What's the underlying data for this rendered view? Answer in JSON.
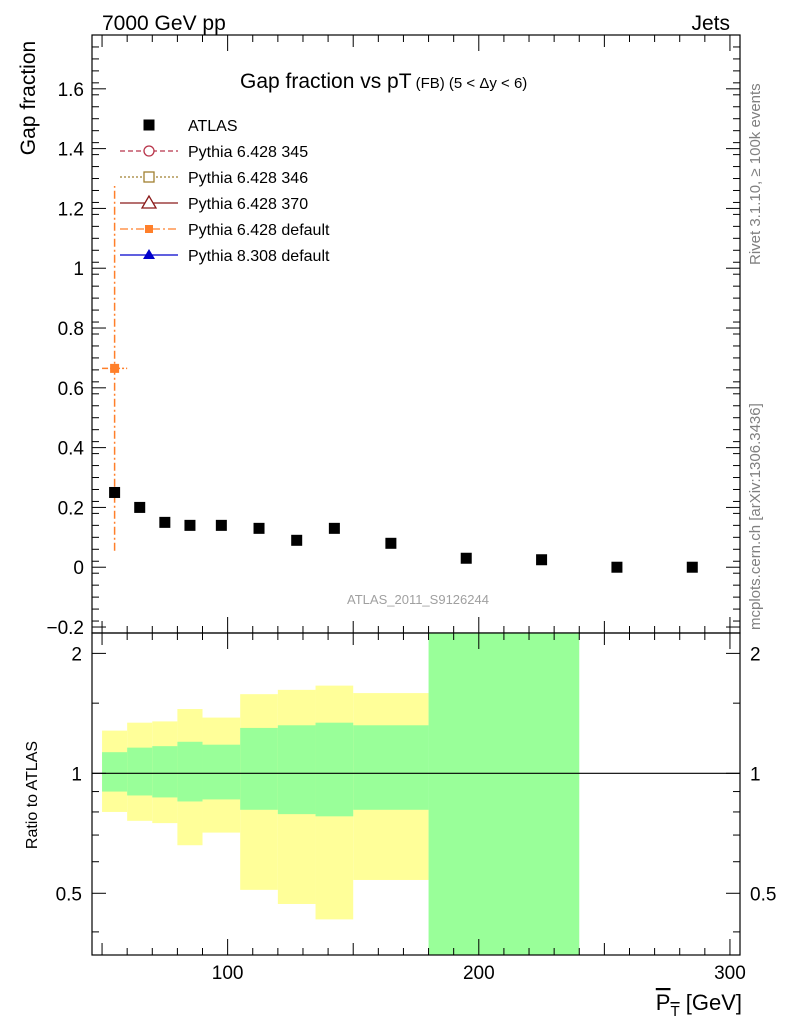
{
  "header": {
    "left_label": "7000 GeV pp",
    "right_label": "Jets",
    "title_main": "Gap fraction vs pT",
    "title_sub": "(FB)  (5 < Δy < 6)",
    "watermark": "ATLAS_2011_S9126244",
    "side_note_top": "Rivet 3.1.10, ≥ 100k events",
    "side_note_bottom": "mcplots.cern.ch [arXiv:1306.3436]"
  },
  "legend": {
    "placement": "top-left",
    "entries": [
      {
        "label": "ATLAS",
        "color": "#000000",
        "marker": "filled-square",
        "line": "none"
      },
      {
        "label": "Pythia 6.428 345",
        "color": "#b8344a",
        "marker": "open-circle",
        "line": "dashed"
      },
      {
        "label": "Pythia 6.428 346",
        "color": "#a08030",
        "marker": "open-square",
        "line": "dotted"
      },
      {
        "label": "Pythia 6.428 370",
        "color": "#8b1a1a",
        "marker": "open-triangle",
        "line": "solid"
      },
      {
        "label": "Pythia 6.428 default",
        "color": "#ff7f2a",
        "marker": "filled-square",
        "line": "dashdot"
      },
      {
        "label": "Pythia 8.308 default",
        "color": "#0000cc",
        "marker": "filled-triangle",
        "line": "solid"
      }
    ]
  },
  "chart_data": [
    {
      "type": "scatter",
      "ylabel": "Gap fraction",
      "xlim": [
        46,
        304
      ],
      "ylim": [
        -0.22,
        1.78
      ],
      "yticks": [
        -0.2,
        0,
        0.2,
        0.4,
        0.6,
        0.8,
        1,
        1.2,
        1.4,
        1.6
      ],
      "ytick_labels": [
        "−0.2",
        "0",
        "0.2",
        "0.4",
        "0.6",
        "0.8",
        "1",
        "1.2",
        "1.4",
        "1.6"
      ],
      "series": [
        {
          "name": "ATLAS",
          "x": [
            55,
            65,
            75,
            85,
            97.5,
            112.5,
            127.5,
            142.5,
            165,
            195,
            225,
            255,
            285
          ],
          "y": [
            0.25,
            0.2,
            0.15,
            0.14,
            0.14,
            0.13,
            0.09,
            0.13,
            0.08,
            0.03,
            0.025,
            0.0,
            0.0
          ]
        },
        {
          "name": "Pythia 6.428 default",
          "points": [
            {
              "x": 55,
              "y": 0.665,
              "xlo": 50,
              "xhi": 60,
              "ylo": 0.055,
              "yhi": 1.275
            }
          ]
        }
      ]
    },
    {
      "type": "area",
      "ylabel": "Ratio to ATLAS",
      "xlabel": "P_T [GeV]",
      "xlim": [
        46,
        304
      ],
      "ylim": [
        0.35,
        2.25
      ],
      "log_y": true,
      "yticks": [
        0.5,
        1,
        2
      ],
      "ytick_labels": [
        "0.5",
        "1",
        "2"
      ],
      "xticks": [
        100,
        200,
        300
      ],
      "xtick_labels": [
        "100",
        "200",
        "300"
      ],
      "reference_line": 1,
      "bands": [
        {
          "name": "total uncertainty",
          "color": "#ffff99",
          "bins": [
            {
              "xlo": 50,
              "xhi": 60,
              "lo": 0.8,
              "hi": 1.28
            },
            {
              "xlo": 60,
              "xhi": 70,
              "lo": 0.76,
              "hi": 1.34
            },
            {
              "xlo": 70,
              "xhi": 80,
              "lo": 0.75,
              "hi": 1.35
            },
            {
              "xlo": 80,
              "xhi": 90,
              "lo": 0.66,
              "hi": 1.45
            },
            {
              "xlo": 90,
              "xhi": 105,
              "lo": 0.71,
              "hi": 1.38
            },
            {
              "xlo": 105,
              "xhi": 120,
              "lo": 0.51,
              "hi": 1.58
            },
            {
              "xlo": 120,
              "xhi": 135,
              "lo": 0.47,
              "hi": 1.62
            },
            {
              "xlo": 135,
              "xhi": 150,
              "lo": 0.43,
              "hi": 1.66
            },
            {
              "xlo": 150,
              "xhi": 180,
              "lo": 0.54,
              "hi": 1.59
            }
          ]
        },
        {
          "name": "statistical uncertainty",
          "color": "#99ff99",
          "bins": [
            {
              "xlo": 50,
              "xhi": 60,
              "lo": 0.9,
              "hi": 1.13
            },
            {
              "xlo": 60,
              "xhi": 70,
              "lo": 0.88,
              "hi": 1.16
            },
            {
              "xlo": 70,
              "xhi": 80,
              "lo": 0.87,
              "hi": 1.17
            },
            {
              "xlo": 80,
              "xhi": 90,
              "lo": 0.85,
              "hi": 1.2
            },
            {
              "xlo": 90,
              "xhi": 105,
              "lo": 0.86,
              "hi": 1.18
            },
            {
              "xlo": 105,
              "xhi": 120,
              "lo": 0.81,
              "hi": 1.3
            },
            {
              "xlo": 120,
              "xhi": 135,
              "lo": 0.79,
              "hi": 1.32
            },
            {
              "xlo": 135,
              "xhi": 150,
              "lo": 0.78,
              "hi": 1.34
            },
            {
              "xlo": 150,
              "xhi": 180,
              "lo": 0.81,
              "hi": 1.32
            },
            {
              "xlo": 180,
              "xhi": 240,
              "lo": 0.35,
              "hi": 2.25
            }
          ]
        }
      ]
    }
  ]
}
